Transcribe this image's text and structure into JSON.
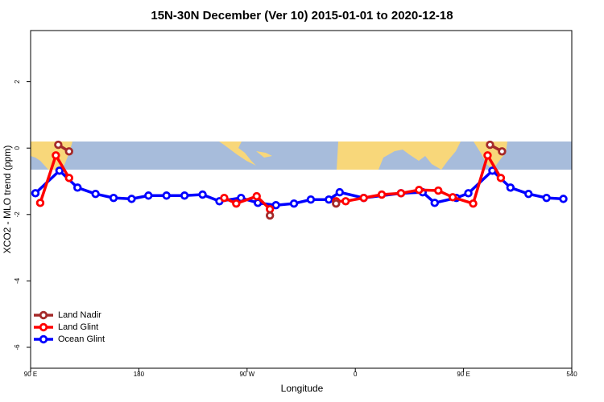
{
  "chart_data": {
    "type": "line",
    "title": "15N-30N December (Ver 10)   2015-01-01 to 2020-12-18",
    "x_label": "Longitude",
    "y_label": "XCO2 - MLO trend (ppm)",
    "xlim": [
      90,
      540
    ],
    "xticks": [
      {
        "value": 90,
        "label": "90 E"
      },
      180,
      {
        "value": 270,
        "label": "90 W"
      },
      {
        "value": 360,
        "label": "0"
      },
      {
        "value": 450,
        "label": "90 E"
      },
      540
    ],
    "ylim": [
      -6.63,
      3.54
    ],
    "yticks": [
      -6,
      -4,
      -2,
      0,
      2
    ],
    "legend": "bottom-left",
    "series": [
      {
        "name": "Land Nadir",
        "color": "#a52a2a",
        "x": [
          113,
          122,
          null,
          289,
          null,
          344,
          null,
          472,
          482
        ],
        "values": [
          0.1,
          -0.1,
          null,
          -2.03,
          null,
          -1.67,
          null,
          0.1,
          -0.1
        ]
      },
      {
        "name": "Land Glint",
        "color": "#ff0000",
        "x": [
          98,
          111,
          122,
          null,
          251,
          261,
          278,
          289,
          null,
          344,
          352,
          367,
          382,
          398,
          413,
          429,
          441,
          458,
          470,
          481
        ],
        "values": [
          -1.65,
          -0.22,
          -0.9,
          null,
          -1.5,
          -1.67,
          -1.45,
          -1.84,
          null,
          -1.6,
          -1.6,
          -1.5,
          -1.4,
          -1.36,
          -1.26,
          -1.28,
          -1.48,
          -1.67,
          -0.22,
          -0.9
        ]
      },
      {
        "name": "Ocean Glint",
        "color": "#0000ff",
        "x": [
          94,
          114,
          129,
          144,
          159,
          174,
          188,
          203,
          218,
          233,
          247,
          265,
          279,
          294,
          309,
          323,
          338,
          347,
          367,
          398,
          416,
          426,
          444,
          454,
          474,
          489,
          504,
          519,
          533
        ],
        "values": [
          -1.36,
          -0.68,
          -1.19,
          -1.38,
          -1.5,
          -1.53,
          -1.43,
          -1.43,
          -1.43,
          -1.4,
          -1.6,
          -1.5,
          -1.65,
          -1.72,
          -1.67,
          -1.55,
          -1.55,
          -1.33,
          -1.5,
          -1.36,
          -1.33,
          -1.65,
          -1.5,
          -1.36,
          -0.68,
          -1.19,
          -1.38,
          -1.5,
          -1.53
        ]
      }
    ]
  }
}
